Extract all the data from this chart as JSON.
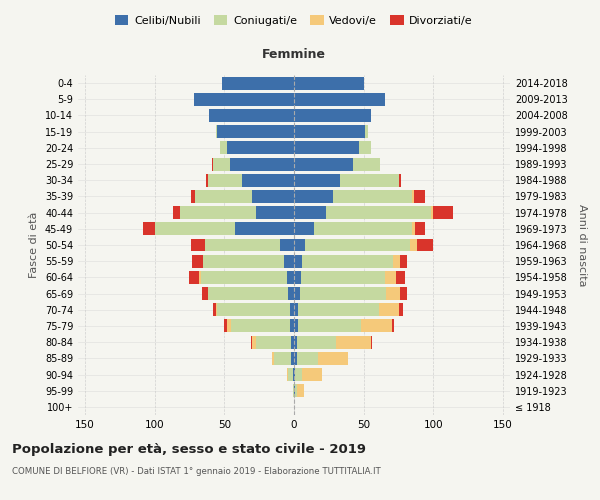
{
  "age_groups": [
    "100+",
    "95-99",
    "90-94",
    "85-89",
    "80-84",
    "75-79",
    "70-74",
    "65-69",
    "60-64",
    "55-59",
    "50-54",
    "45-49",
    "40-44",
    "35-39",
    "30-34",
    "25-29",
    "20-24",
    "15-19",
    "10-14",
    "5-9",
    "0-4"
  ],
  "birth_years": [
    "≤ 1918",
    "1919-1923",
    "1924-1928",
    "1929-1933",
    "1934-1938",
    "1939-1943",
    "1944-1948",
    "1949-1953",
    "1954-1958",
    "1959-1963",
    "1964-1968",
    "1969-1973",
    "1974-1978",
    "1979-1983",
    "1984-1988",
    "1989-1993",
    "1994-1998",
    "1999-2003",
    "2004-2008",
    "2009-2013",
    "2014-2018"
  ],
  "male": {
    "celibe": [
      0,
      0,
      1,
      2,
      2,
      3,
      3,
      4,
      5,
      7,
      10,
      42,
      27,
      30,
      37,
      46,
      48,
      55,
      61,
      72,
      52
    ],
    "coniugato": [
      0,
      1,
      3,
      12,
      25,
      42,
      52,
      58,
      62,
      58,
      54,
      58,
      55,
      41,
      25,
      12,
      5,
      1,
      0,
      0,
      0
    ],
    "vedovo": [
      0,
      0,
      1,
      2,
      3,
      3,
      1,
      0,
      1,
      0,
      0,
      0,
      0,
      0,
      0,
      0,
      0,
      0,
      0,
      0,
      0
    ],
    "divorziato": [
      0,
      0,
      0,
      0,
      1,
      2,
      2,
      4,
      7,
      8,
      10,
      8,
      5,
      3,
      1,
      1,
      0,
      0,
      0,
      0,
      0
    ]
  },
  "female": {
    "nubile": [
      0,
      1,
      1,
      2,
      2,
      3,
      3,
      4,
      5,
      6,
      8,
      14,
      23,
      28,
      33,
      42,
      47,
      51,
      55,
      65,
      50
    ],
    "coniugata": [
      0,
      1,
      5,
      15,
      28,
      45,
      58,
      62,
      60,
      65,
      75,
      71,
      75,
      57,
      42,
      20,
      8,
      2,
      0,
      0,
      0
    ],
    "vedova": [
      0,
      5,
      14,
      22,
      25,
      22,
      14,
      10,
      8,
      5,
      5,
      2,
      2,
      1,
      0,
      0,
      0,
      0,
      0,
      0,
      0
    ],
    "divorziata": [
      0,
      0,
      0,
      0,
      1,
      2,
      3,
      5,
      7,
      5,
      12,
      7,
      14,
      8,
      2,
      0,
      0,
      0,
      0,
      0,
      0
    ]
  },
  "colors": {
    "celibe": "#3d6faa",
    "coniugato": "#c5d9a0",
    "vedovo": "#f5c97a",
    "divorziato": "#d9342b"
  },
  "xlim": 155,
  "title": "Popolazione per età, sesso e stato civile - 2019",
  "subtitle": "COMUNE DI BELFIORE (VR) - Dati ISTAT 1° gennaio 2019 - Elaborazione TUTTITALIA.IT",
  "ylabel_left": "Fasce di età",
  "ylabel_right": "Anni di nascita",
  "xlabel_right": "Femmine",
  "legend_labels": [
    "Celibi/Nubili",
    "Coniugati/e",
    "Vedovi/e",
    "Divorziati/e"
  ],
  "bg_color": "#f5f5f0",
  "grid_color": "#cccccc"
}
